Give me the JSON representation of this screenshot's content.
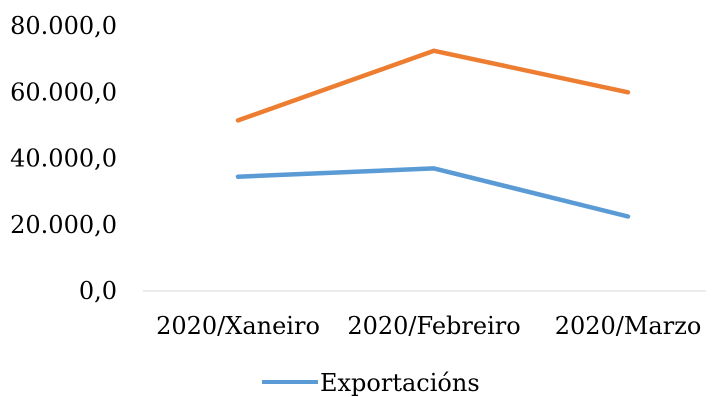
{
  "chart_data": {
    "type": "line",
    "title": "",
    "xlabel": "",
    "ylabel": "",
    "categories": [
      "2020/Xaneiro",
      "2020/Febreiro",
      "2020/Marzo"
    ],
    "y_tick_labels": [
      "0,0",
      "20.000,0",
      "40.000,0",
      "60.000,0",
      "80.000,0"
    ],
    "y_ticks": [
      0,
      20000,
      40000,
      60000,
      80000
    ],
    "ylim": [
      0,
      80000
    ],
    "grid": false,
    "legend_position": "bottom",
    "series": [
      {
        "name": "Exportacións",
        "color": "#5B9BD5",
        "values": [
          34500,
          37000,
          22500
        ],
        "in_legend": true
      },
      {
        "color": "#ED7D31",
        "values": [
          51500,
          72500,
          60000
        ],
        "in_legend": false
      }
    ]
  }
}
